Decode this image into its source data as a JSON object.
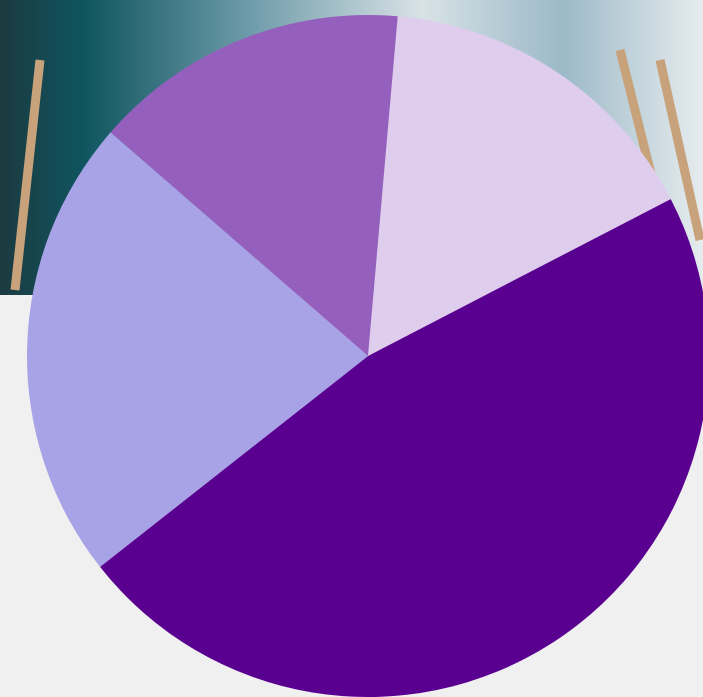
{
  "chart_data": {
    "type": "pie",
    "values": [
      16,
      47,
      22,
      15
    ],
    "colors": [
      "#dfcdee",
      "#5a0090",
      "#a8a3e6",
      "#9560bd"
    ],
    "start_angle": 5,
    "direction": "clockwise"
  }
}
